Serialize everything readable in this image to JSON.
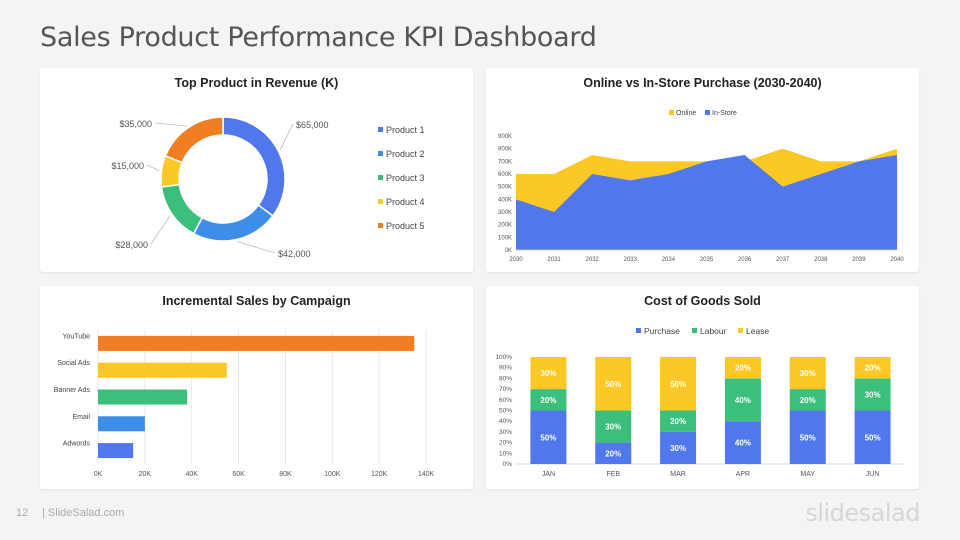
{
  "page": {
    "title": "Sales Product Performance KPI Dashboard",
    "page_number": "12",
    "site": "| SlideSalad.com",
    "logo": "slidesalad"
  },
  "colors": {
    "blue": "#5078ec",
    "mid_blue": "#3d8ee8",
    "green": "#3cbf7a",
    "yellow": "#fbc825",
    "orange": "#f27e22"
  },
  "chart_data": [
    {
      "type": "pie",
      "title": "Top Product in Revenue (K)",
      "legend_position": "right",
      "slices": [
        {
          "name": "Product 1",
          "value": 65000,
          "label": "$65,000",
          "color": "#5078ec"
        },
        {
          "name": "Product 2",
          "value": 42000,
          "label": "$42,000",
          "color": "#3d8ee8"
        },
        {
          "name": "Product 3",
          "value": 28000,
          "label": "$28,000",
          "color": "#3cbf7a"
        },
        {
          "name": "Product 4",
          "value": 15000,
          "label": "$15,000",
          "color": "#fbc825"
        },
        {
          "name": "Product 5",
          "value": 35000,
          "label": "$35,000",
          "color": "#f27e22"
        }
      ]
    },
    {
      "type": "area",
      "title": "Online vs In-Store Purchase (2030-2040)",
      "legend_position": "top",
      "x": [
        "2030",
        "2031",
        "2032",
        "2033",
        "2034",
        "2035",
        "2036",
        "2037",
        "2038",
        "2039",
        "2040"
      ],
      "ylim": [
        0,
        900000
      ],
      "yticks": [
        "0K",
        "100K",
        "200K",
        "300K",
        "400K",
        "500K",
        "600K",
        "700K",
        "800K",
        "900K"
      ],
      "series": [
        {
          "name": "Online",
          "color": "#fbc825",
          "values": [
            600000,
            600000,
            750000,
            700000,
            700000,
            700000,
            700000,
            800000,
            700000,
            700000,
            800000
          ]
        },
        {
          "name": "In-Store",
          "color": "#5078ec",
          "values": [
            400000,
            300000,
            600000,
            550000,
            600000,
            700000,
            750000,
            500000,
            600000,
            700000,
            750000
          ]
        }
      ]
    },
    {
      "type": "bar",
      "orientation": "horizontal",
      "title": "Incremental Sales by Campaign",
      "categories": [
        "YouTube",
        "Social Ads",
        "Banner Ads",
        "Email",
        "Adwords"
      ],
      "values": [
        135000,
        55000,
        38000,
        20000,
        15000
      ],
      "colors": [
        "#f27e22",
        "#fbc825",
        "#3cbf7a",
        "#3d8ee8",
        "#5078ec"
      ],
      "xlim": [
        0,
        140000
      ],
      "xticks": [
        "0K",
        "20K",
        "40K",
        "60K",
        "80K",
        "100K",
        "120K",
        "140K"
      ],
      "grid": true
    },
    {
      "type": "bar",
      "stacked": true,
      "title": "Cost of Goods Sold",
      "legend_position": "top",
      "categories": [
        "JAN",
        "FEB",
        "MAR",
        "APR",
        "MAY",
        "JUN"
      ],
      "ylim": [
        0,
        100
      ],
      "yticks": [
        "0%",
        "10%",
        "20%",
        "30%",
        "40%",
        "50%",
        "60%",
        "70%",
        "80%",
        "90%",
        "100%"
      ],
      "series": [
        {
          "name": "Purchase",
          "color": "#5078ec",
          "values": [
            50,
            20,
            30,
            40,
            50,
            50
          ],
          "labels": [
            "50%",
            "20%",
            "30%",
            "40%",
            "50%",
            "50%"
          ]
        },
        {
          "name": "Labour",
          "color": "#3cbf7a",
          "values": [
            20,
            30,
            20,
            40,
            20,
            30
          ],
          "labels": [
            "20%",
            "30%",
            "20%",
            "40%",
            "20%",
            "30%"
          ]
        },
        {
          "name": "Lease",
          "color": "#fbc825",
          "values": [
            30,
            50,
            50,
            20,
            30,
            20
          ],
          "labels": [
            "30%",
            "50%",
            "50%",
            "20%",
            "30%",
            "20%"
          ]
        }
      ]
    }
  ]
}
